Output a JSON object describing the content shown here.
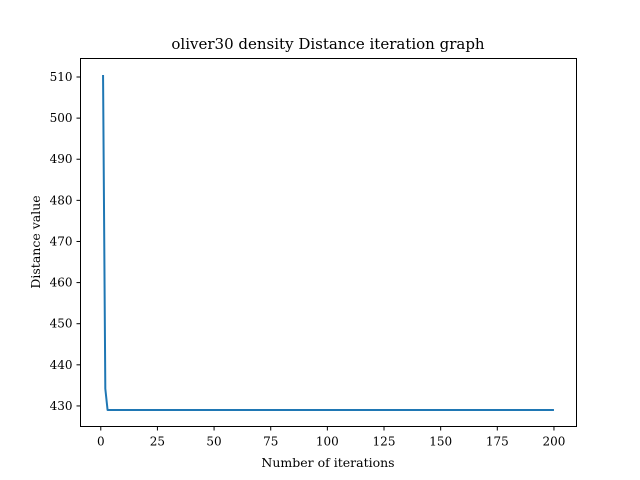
{
  "chart_data": {
    "type": "line",
    "title": "oliver30 density Distance iteration graph",
    "xlabel": "Number of iterations",
    "ylabel": "Distance value",
    "xlim": [
      -8.95,
      209.95
    ],
    "ylim": [
      425.0,
      514.5
    ],
    "xticks": [
      0,
      25,
      50,
      75,
      100,
      125,
      150,
      175,
      200
    ],
    "yticks": [
      430,
      440,
      450,
      460,
      470,
      480,
      490,
      500,
      510
    ],
    "grid": false,
    "series": [
      {
        "color": "#1f77b4",
        "x": [
          1,
          2,
          3,
          4,
          5,
          10,
          20,
          40,
          60,
          80,
          100,
          120,
          140,
          160,
          180,
          200
        ],
        "y": [
          510.5,
          434.2,
          429.0,
          429.0,
          429.0,
          429.0,
          429.0,
          429.0,
          429.0,
          429.0,
          429.0,
          429.0,
          429.0,
          429.0,
          429.0,
          429.0
        ]
      }
    ]
  }
}
